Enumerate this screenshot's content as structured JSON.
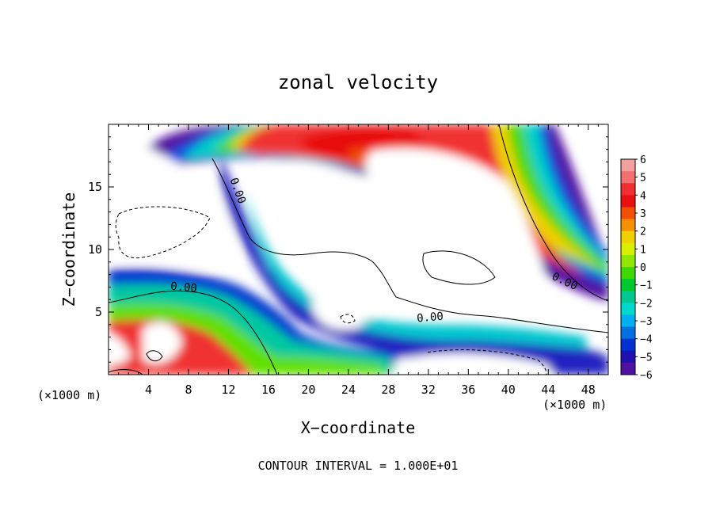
{
  "chart_data": {
    "type": "heatmap",
    "title": "zonal velocity",
    "xlabel": "X−coordinate",
    "ylabel": "Z−coordinate",
    "x_unit_left": "(×1000 m)",
    "x_unit_right": "(×1000 m)",
    "xlim": [
      0,
      50
    ],
    "ylim": [
      0,
      20
    ],
    "x_ticks": [
      4,
      8,
      12,
      16,
      20,
      24,
      28,
      32,
      36,
      40,
      44,
      48
    ],
    "y_ticks": [
      5,
      10,
      15
    ],
    "colorbar": {
      "labels": [
        "6",
        "5",
        "4",
        "3",
        "2",
        "1",
        "0",
        "−1",
        "−2",
        "−3",
        "−4",
        "−5",
        "−6"
      ],
      "colors": [
        "#f4a0a0",
        "#f47070",
        "#f03030",
        "#e81010",
        "#f05000",
        "#f59000",
        "#f0d000",
        "#d8f000",
        "#90e800",
        "#40d800",
        "#00c830",
        "#00c890",
        "#00d8d0",
        "#00b0f0",
        "#0070e0",
        "#0030d0",
        "#2010b0",
        "#5010a0"
      ]
    },
    "contour_labels": [
      {
        "text": "0.00",
        "x": 12.6,
        "y": 14.6,
        "rot": 70
      },
      {
        "text": "0.00",
        "x": 7.5,
        "y": 6.7,
        "rot": 5
      },
      {
        "text": "0.00",
        "x": 32.2,
        "y": 4.3,
        "rot": -5
      },
      {
        "text": "0.00",
        "x": 45.5,
        "y": 7.2,
        "rot": 25
      }
    ],
    "footer": "CONTOUR INTERVAL = 1.000E+01"
  }
}
